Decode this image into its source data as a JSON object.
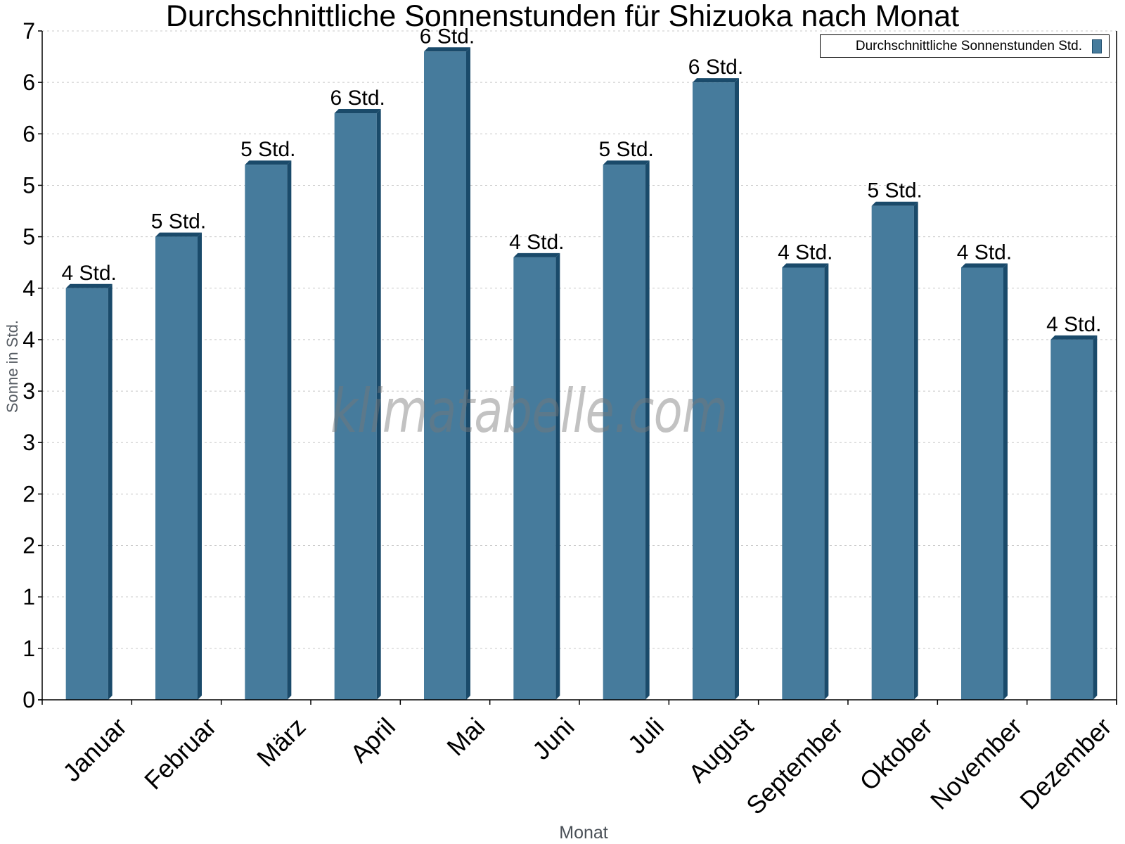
{
  "chart_data": {
    "type": "bar",
    "title": "Durchschnittliche Sonnenstunden für Shizuoka nach Monat",
    "xlabel": "Monat",
    "ylabel": "Sonne in Std.",
    "categories": [
      "Januar",
      "Februar",
      "März",
      "April",
      "Mai",
      "Juni",
      "Juli",
      "August",
      "September",
      "Oktober",
      "November",
      "Dezember"
    ],
    "series": [
      {
        "name": "Durchschnittliche Sonnenstunden Std.",
        "values": [
          4.0,
          4.5,
          5.2,
          5.7,
          6.3,
          4.3,
          5.2,
          6.0,
          4.2,
          4.8,
          4.2,
          3.5
        ],
        "data_labels": [
          "4 Std.",
          "5 Std.",
          "5 Std.",
          "6 Std.",
          "6 Std.",
          "4 Std.",
          "5 Std.",
          "6 Std.",
          "4 Std.",
          "5 Std.",
          "4 Std.",
          "4 Std."
        ],
        "color": "#467b9c",
        "side_color": "#1a4a6a"
      }
    ],
    "ylim": [
      0,
      6.5
    ],
    "ytick_step": 0.5,
    "ytick_labels": [
      "0",
      "1",
      "1",
      "2",
      "2",
      "3",
      "3",
      "4",
      "4",
      "5",
      "5",
      "6",
      "6",
      "7"
    ],
    "grid": true,
    "legend_position": "top-right",
    "watermark": "klimatabelle.com"
  }
}
